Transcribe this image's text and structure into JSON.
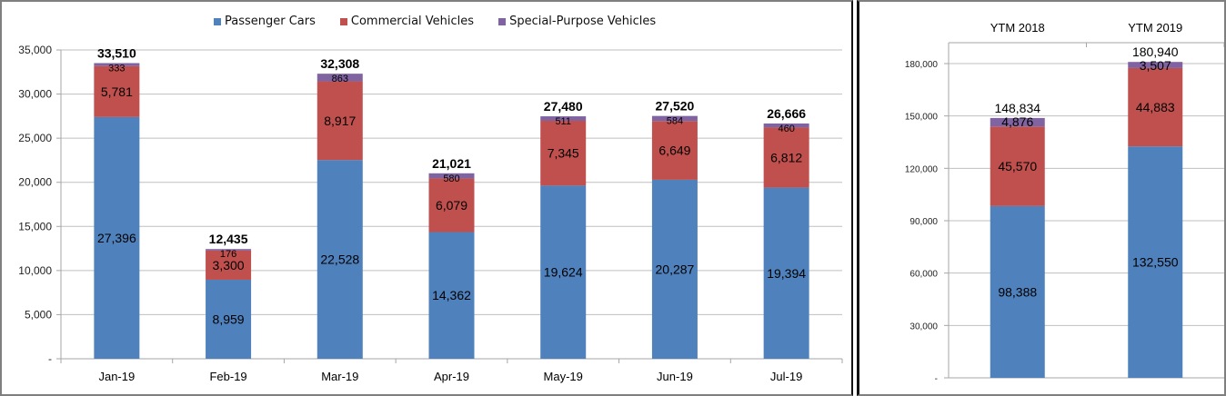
{
  "colors": {
    "passenger": "#4f81bd",
    "commercial": "#c0504d",
    "special": "#8064a2",
    "grid": "#bfbfbf",
    "axis": "#a6a6a6",
    "text": "#000000"
  },
  "chart_data": [
    {
      "type": "bar",
      "stacked": true,
      "title": "",
      "xlabel": "",
      "ylabel": "",
      "categories": [
        "Jan-19",
        "Feb-19",
        "Mar-19",
        "Apr-19",
        "May-19",
        "Jun-19",
        "Jul-19"
      ],
      "series": [
        {
          "name": "Passenger Cars",
          "key": "passenger",
          "values": [
            27396,
            8959,
            22528,
            14362,
            19624,
            20287,
            19394
          ],
          "labels": [
            "27,396",
            "8,959",
            "22,528",
            "14,362",
            "19,624",
            "20,287",
            "19,394"
          ]
        },
        {
          "name": "Commercial Vehicles",
          "key": "commercial",
          "values": [
            5781,
            3300,
            8917,
            6079,
            7345,
            6649,
            6812
          ],
          "labels": [
            "5,781",
            "3,300",
            "8,917",
            "6,079",
            "7,345",
            "6,649",
            "6,812"
          ]
        },
        {
          "name": "Special-Purpose Vehicles",
          "key": "special",
          "values": [
            333,
            176,
            863,
            580,
            511,
            584,
            460
          ],
          "labels": [
            "333",
            "176",
            "863",
            "580",
            "511",
            "584",
            "460"
          ]
        }
      ],
      "totals": [
        33510,
        12435,
        32308,
        21021,
        27480,
        27520,
        26666
      ],
      "total_labels": [
        "33,510",
        "12,435",
        "32,308",
        "21,021",
        "27,480",
        "27,520",
        "26,666"
      ],
      "ylim": [
        0,
        35000
      ],
      "yticks": [
        0,
        5000,
        10000,
        15000,
        20000,
        25000,
        30000,
        35000
      ],
      "ytick_labels": [
        "-",
        "5,000",
        "10,000",
        "15,000",
        "20,000",
        "25,000",
        "30,000",
        "35,000"
      ],
      "grid": true,
      "legend": {
        "placement": "top-center",
        "entries": [
          "Passenger Cars",
          "Commercial Vehicles",
          "Special-Purpose Vehicles"
        ]
      }
    },
    {
      "type": "bar",
      "stacked": true,
      "title": "",
      "xlabel": "",
      "ylabel": "",
      "x_axis_position": "top",
      "categories": [
        "YTM 2018",
        "YTM 2019"
      ],
      "series": [
        {
          "name": "Passenger Cars",
          "key": "passenger",
          "values": [
            98388,
            132550
          ],
          "labels": [
            "98,388",
            "132,550"
          ]
        },
        {
          "name": "Commercial Vehicles",
          "key": "commercial",
          "values": [
            45570,
            44883
          ],
          "labels": [
            "45,570",
            "44,883"
          ]
        },
        {
          "name": "Special-Purpose Vehicles",
          "key": "special",
          "values": [
            4876,
            3507
          ],
          "labels": [
            "4,876",
            "3,507"
          ]
        }
      ],
      "totals": [
        148834,
        180940
      ],
      "total_labels": [
        "148,834",
        "180,940"
      ],
      "ylim": [
        0,
        180000
      ],
      "yticks": [
        0,
        30000,
        60000,
        90000,
        120000,
        150000,
        180000
      ],
      "ytick_labels": [
        "-",
        "30,000",
        "60,000",
        "90,000",
        "120,000",
        "150,000",
        "180,000"
      ],
      "grid": true
    }
  ]
}
